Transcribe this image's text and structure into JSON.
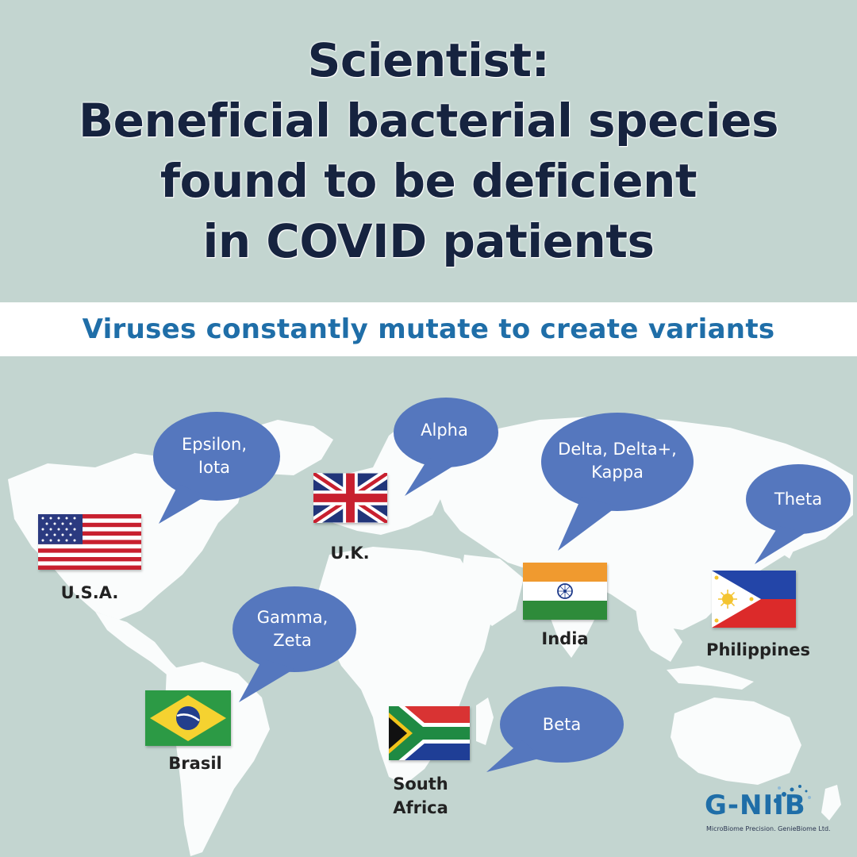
{
  "title": {
    "lines": [
      "Scientist:",
      "Beneficial bacterial species",
      "found to be deficient",
      "in COVID patients"
    ]
  },
  "banner": {
    "text": "Viruses constantly mutate to create variants"
  },
  "variants": {
    "usa": {
      "country": "U.S.A.",
      "bubble": "Epsilon,\nIota"
    },
    "uk": {
      "country": "U.K.",
      "bubble": "Alpha"
    },
    "india": {
      "country": "India",
      "bubble": "Delta, Delta+,\nKappa"
    },
    "philippines": {
      "country": "Philippines",
      "bubble": "Theta"
    },
    "brasil": {
      "country": "Brasil",
      "bubble": "Gamma,\nZeta"
    },
    "south_africa": {
      "country": "South\nAfrica",
      "bubble": "Beta"
    }
  },
  "logo": {
    "name": "G-NIIB",
    "tagline": "MicroBiome Precision. GenieBiome Ltd."
  },
  "colors": {
    "background": "#c3d5d0",
    "title": "#16233f",
    "banner_text": "#1f6ea8",
    "bubble": "#5577be",
    "map_land": "#fafcfc"
  }
}
